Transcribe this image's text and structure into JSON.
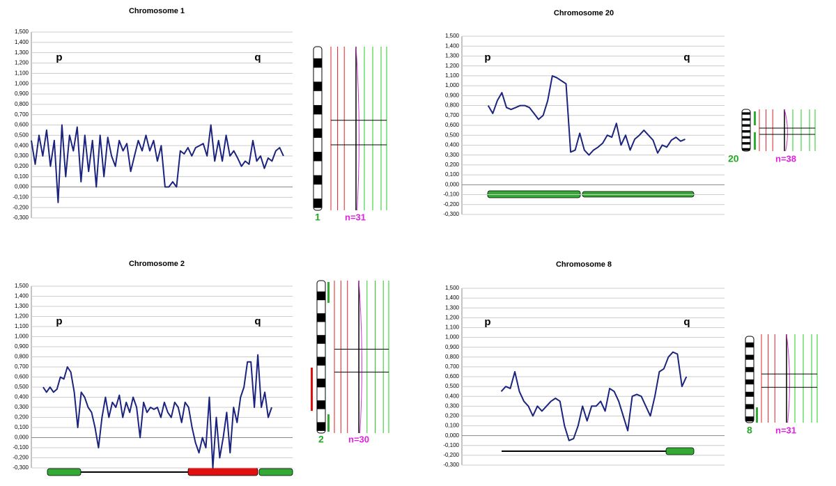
{
  "chart_data": [
    {
      "type": "line",
      "title": "Chromosome 1",
      "annotations": [
        "p",
        "q"
      ],
      "panel_labels": [
        "1",
        "n=31"
      ],
      "color": "#1a237e",
      "grid": true,
      "ylim": [
        -0.3,
        1.5
      ],
      "yticks": [
        {
          "value": -0.3,
          "label": "-0,300"
        },
        {
          "value": -0.2,
          "label": "-0,200"
        },
        {
          "value": -0.1,
          "label": "-0,100"
        },
        {
          "value": 0,
          "label": "0,000"
        },
        {
          "value": 0.1,
          "label": "0,100"
        },
        {
          "value": 0.2,
          "label": "0,200"
        },
        {
          "value": 0.3,
          "label": "0,300"
        },
        {
          "value": 0.4,
          "label": "0,400"
        },
        {
          "value": 0.5,
          "label": "0,500"
        },
        {
          "value": 0.6,
          "label": "0,600"
        },
        {
          "value": 0.7,
          "label": "0,700"
        },
        {
          "value": 0.8,
          "label": "0,800"
        },
        {
          "value": 0.9,
          "label": "0,900"
        },
        {
          "value": 1.0,
          "label": "1,000"
        },
        {
          "value": 1.1,
          "label": "1,100"
        },
        {
          "value": 1.2,
          "label": "1,200"
        },
        {
          "value": 1.3,
          "label": "1,300"
        },
        {
          "value": 1.4,
          "label": "1,400"
        },
        {
          "value": 1.5,
          "label": "1,500"
        }
      ],
      "values": [
        0.45,
        0.22,
        0.5,
        0.3,
        0.55,
        0.2,
        0.45,
        -0.15,
        0.6,
        0.1,
        0.5,
        0.35,
        0.58,
        0.05,
        0.5,
        0.15,
        0.45,
        0.0,
        0.5,
        0.1,
        0.48,
        0.3,
        0.2,
        0.45,
        0.35,
        0.42,
        0.15,
        0.3,
        0.45,
        0.35,
        0.5,
        0.35,
        0.45,
        0.25,
        0.4,
        0.0,
        0.0,
        0.05,
        0.0,
        0.35,
        0.32,
        0.38,
        0.3,
        0.38,
        0.4,
        0.42,
        0.3,
        0.6,
        0.25,
        0.45,
        0.25,
        0.5,
        0.3,
        0.35,
        0.28,
        0.2,
        0.25,
        0.22,
        0.45,
        0.25,
        0.3,
        0.18,
        0.28,
        0.25,
        0.35,
        0.38,
        0.3
      ]
    },
    {
      "type": "line",
      "title": "Chromosome 20",
      "annotations": [
        "p",
        "q"
      ],
      "panel_labels": [
        "20",
        "n=38"
      ],
      "color": "#1a237e",
      "grid": true,
      "ylim": [
        -0.3,
        1.5
      ],
      "yticks": [
        {
          "value": -0.3,
          "label": "-0,300"
        },
        {
          "value": -0.2,
          "label": "-0,200"
        },
        {
          "value": -0.1,
          "label": "-0,100"
        },
        {
          "value": 0,
          "label": "0,000"
        },
        {
          "value": 0.1,
          "label": "0,100"
        },
        {
          "value": 0.2,
          "label": "0,200"
        },
        {
          "value": 0.3,
          "label": "0,300"
        },
        {
          "value": 0.4,
          "label": "0,400"
        },
        {
          "value": 0.5,
          "label": "0,500"
        },
        {
          "value": 0.6,
          "label": "0,600"
        },
        {
          "value": 0.7,
          "label": "0,700"
        },
        {
          "value": 0.8,
          "label": "0,800"
        },
        {
          "value": 0.9,
          "label": "0,900"
        },
        {
          "value": 1.0,
          "label": "1,000"
        },
        {
          "value": 1.1,
          "label": "1,100"
        },
        {
          "value": 1.2,
          "label": "1,200"
        },
        {
          "value": 1.3,
          "label": "1,300"
        },
        {
          "value": 1.4,
          "label": "1,400"
        },
        {
          "value": 1.5,
          "label": "1,500"
        }
      ],
      "values": [
        0.8,
        0.72,
        0.85,
        0.93,
        0.78,
        0.76,
        0.78,
        0.8,
        0.8,
        0.78,
        0.72,
        0.66,
        0.7,
        0.85,
        1.1,
        1.08,
        1.05,
        1.02,
        0.33,
        0.35,
        0.52,
        0.35,
        0.3,
        0.35,
        0.38,
        0.42,
        0.5,
        0.48,
        0.62,
        0.4,
        0.5,
        0.35,
        0.46,
        0.5,
        0.55,
        0.5,
        0.45,
        0.32,
        0.4,
        0.38,
        0.45,
        0.48,
        0.44,
        0.46
      ]
    },
    {
      "type": "line",
      "title": "Chromosome 2",
      "annotations": [
        "p",
        "q"
      ],
      "panel_labels": [
        "2",
        "n=30"
      ],
      "color": "#1a237e",
      "grid": true,
      "ylim": [
        -0.3,
        1.5
      ],
      "yticks": [
        {
          "value": -0.3,
          "label": "-0,300"
        },
        {
          "value": -0.2,
          "label": "-0,200"
        },
        {
          "value": -0.1,
          "label": "-0,100"
        },
        {
          "value": 0,
          "label": "0,000"
        },
        {
          "value": 0.1,
          "label": "0,100"
        },
        {
          "value": 0.2,
          "label": "0,200"
        },
        {
          "value": 0.3,
          "label": "0,300"
        },
        {
          "value": 0.4,
          "label": "0,400"
        },
        {
          "value": 0.5,
          "label": "0,500"
        },
        {
          "value": 0.6,
          "label": "0,600"
        },
        {
          "value": 0.7,
          "label": "0,700"
        },
        {
          "value": 0.8,
          "label": "0,800"
        },
        {
          "value": 0.9,
          "label": "0,900"
        },
        {
          "value": 1.0,
          "label": "1,000"
        },
        {
          "value": 1.1,
          "label": "1,100"
        },
        {
          "value": 1.2,
          "label": "1,200"
        },
        {
          "value": 1.3,
          "label": "1,300"
        },
        {
          "value": 1.4,
          "label": "1,400"
        },
        {
          "value": 1.5,
          "label": "1,500"
        }
      ],
      "values": [
        0.5,
        0.45,
        0.5,
        0.45,
        0.48,
        0.6,
        0.58,
        0.7,
        0.65,
        0.45,
        0.1,
        0.45,
        0.4,
        0.3,
        0.25,
        0.1,
        -0.1,
        0.2,
        0.4,
        0.2,
        0.35,
        0.3,
        0.42,
        0.2,
        0.35,
        0.25,
        0.4,
        0.3,
        0.0,
        0.35,
        0.25,
        0.3,
        0.28,
        0.3,
        0.2,
        0.35,
        0.25,
        0.2,
        0.35,
        0.3,
        0.15,
        0.35,
        0.3,
        0.1,
        -0.05,
        -0.15,
        0.0,
        -0.1,
        0.4,
        -0.3,
        0.2,
        -0.2,
        0.0,
        0.25,
        -0.15,
        0.3,
        0.15,
        0.4,
        0.5,
        0.75,
        0.75,
        0.3,
        0.82,
        0.3,
        0.45,
        0.2,
        0.3
      ]
    },
    {
      "type": "line",
      "title": "Chromosome 8",
      "annotations": [
        "p",
        "q"
      ],
      "panel_labels": [
        "8",
        "n=31"
      ],
      "color": "#1a237e",
      "grid": true,
      "ylim": [
        -0.3,
        1.5
      ],
      "yticks": [
        {
          "value": -0.3,
          "label": "-0,300"
        },
        {
          "value": -0.2,
          "label": "-0,200"
        },
        {
          "value": -0.1,
          "label": "-0,100"
        },
        {
          "value": 0,
          "label": "0,000"
        },
        {
          "value": 0.1,
          "label": "0,100"
        },
        {
          "value": 0.2,
          "label": "0,200"
        },
        {
          "value": 0.3,
          "label": "0,300"
        },
        {
          "value": 0.4,
          "label": "0,400"
        },
        {
          "value": 0.5,
          "label": "0,500"
        },
        {
          "value": 0.6,
          "label": "0,600"
        },
        {
          "value": 0.7,
          "label": "0,700"
        },
        {
          "value": 0.8,
          "label": "0,800"
        },
        {
          "value": 0.9,
          "label": "0,900"
        },
        {
          "value": 1.0,
          "label": "1,000"
        },
        {
          "value": 1.1,
          "label": "1,100"
        },
        {
          "value": 1.2,
          "label": "1,200"
        },
        {
          "value": 1.3,
          "label": "1,300"
        },
        {
          "value": 1.4,
          "label": "1,400"
        },
        {
          "value": 1.5,
          "label": "1,500"
        }
      ],
      "values": [
        0.45,
        0.5,
        0.48,
        0.65,
        0.45,
        0.35,
        0.3,
        0.2,
        0.3,
        0.25,
        0.3,
        0.35,
        0.38,
        0.35,
        0.1,
        -0.05,
        -0.03,
        0.1,
        0.3,
        0.15,
        0.3,
        0.3,
        0.35,
        0.25,
        0.48,
        0.45,
        0.35,
        0.2,
        0.05,
        0.4,
        0.42,
        0.4,
        0.3,
        0.2,
        0.4,
        0.65,
        0.68,
        0.8,
        0.85,
        0.83,
        0.5,
        0.6
      ]
    }
  ]
}
